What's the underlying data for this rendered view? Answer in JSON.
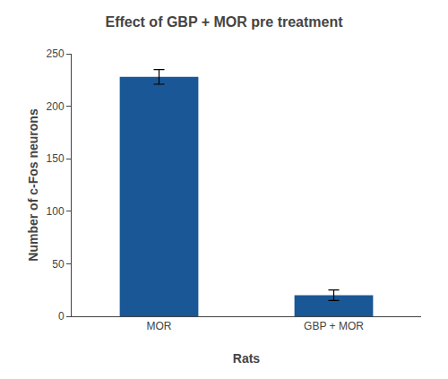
{
  "chart_data": {
    "type": "bar",
    "title": "Effect of GBP + MOR pre treatment",
    "xlabel": "Rats",
    "ylabel": "Number of c-Fos neurons",
    "categories": [
      "MOR",
      "GBP + MOR"
    ],
    "values": [
      228,
      20
    ],
    "errors": [
      7,
      5
    ],
    "color": "#1a5796",
    "ylim": [
      0,
      250
    ],
    "yticks": [
      0,
      50,
      100,
      150,
      200,
      250
    ],
    "grid": false
  }
}
